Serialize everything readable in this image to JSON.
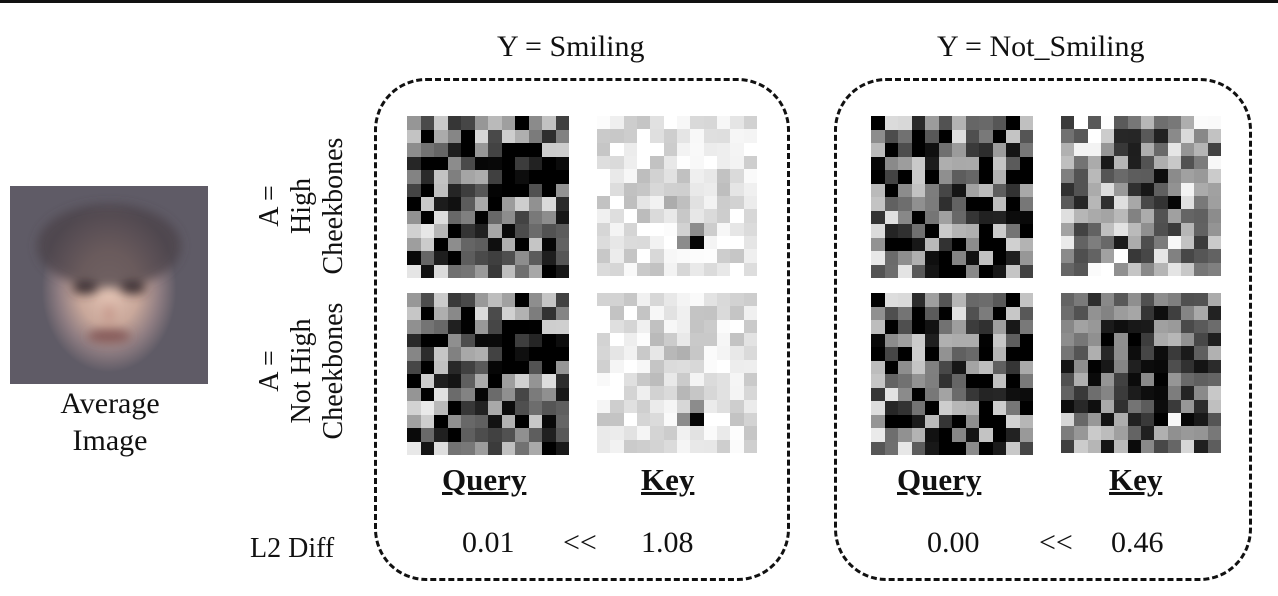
{
  "average_image": {
    "caption_line1": "Average",
    "caption_line2": "Image"
  },
  "columns": [
    {
      "title": "Y = Smiling",
      "query_label": "Query",
      "key_label": "Key",
      "query_diff": "0.01",
      "relation": "<<",
      "key_diff": "1.08"
    },
    {
      "title": "Y = Not_Smiling",
      "query_label": "Query",
      "key_label": "Key",
      "query_diff": "0.00",
      "relation": "<<",
      "key_diff": "0.46"
    }
  ],
  "rows": [
    {
      "label_line1": "A =",
      "label_line2": "High",
      "label_line3": "Cheekbones"
    },
    {
      "label_line1": "A =",
      "label_line2": "Not High",
      "label_line3": "Cheekbones"
    }
  ],
  "row_header": {
    "l2_label": "L2 Diff"
  },
  "colors": {
    "ink": "#111111",
    "background": "#ffffff"
  }
}
